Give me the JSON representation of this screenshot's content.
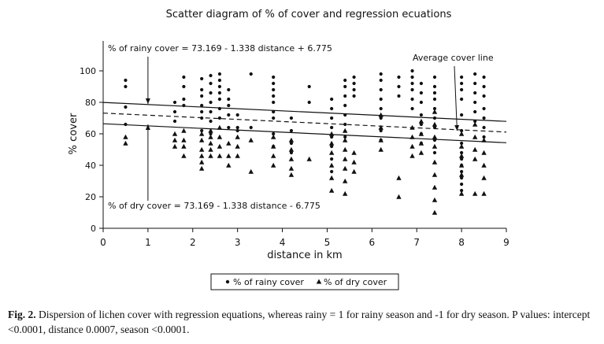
{
  "chart_data": {
    "type": "scatter",
    "title": "Scatter diagram of % of cover and regression ecuations",
    "xlabel": "distance in km",
    "ylabel": "% cover",
    "xlim": [
      0,
      9
    ],
    "ylim": [
      0,
      100
    ],
    "x_ticks": [
      "0",
      "1",
      "2",
      "3",
      "4",
      "5",
      "6",
      "7",
      "8",
      "9"
    ],
    "y_ticks": [
      "0",
      "20",
      "40",
      "60",
      "80",
      "100"
    ],
    "grid": false,
    "legend_position": "bottom-center",
    "series": [
      {
        "name": "% of rainy cover",
        "marker": "circle",
        "points": [
          [
            0.5,
            94
          ],
          [
            0.5,
            90
          ],
          [
            0.5,
            77
          ],
          [
            0.5,
            66
          ],
          [
            1.6,
            80
          ],
          [
            1.6,
            74
          ],
          [
            1.6,
            68
          ],
          [
            1.8,
            96
          ],
          [
            1.8,
            90
          ],
          [
            1.8,
            82
          ],
          [
            1.8,
            78
          ],
          [
            2.2,
            95
          ],
          [
            2.2,
            88
          ],
          [
            2.2,
            84
          ],
          [
            2.2,
            78
          ],
          [
            2.2,
            74
          ],
          [
            2.2,
            70
          ],
          [
            2.2,
            62
          ],
          [
            2.4,
            97
          ],
          [
            2.4,
            92
          ],
          [
            2.4,
            86
          ],
          [
            2.4,
            80
          ],
          [
            2.4,
            74
          ],
          [
            2.4,
            68
          ],
          [
            2.4,
            60
          ],
          [
            2.6,
            98
          ],
          [
            2.6,
            94
          ],
          [
            2.6,
            90
          ],
          [
            2.6,
            86
          ],
          [
            2.6,
            82
          ],
          [
            2.6,
            76
          ],
          [
            2.6,
            70
          ],
          [
            2.8,
            88
          ],
          [
            2.8,
            82
          ],
          [
            2.8,
            78
          ],
          [
            2.8,
            72
          ],
          [
            2.8,
            64
          ],
          [
            3.0,
            72
          ],
          [
            3.0,
            64
          ],
          [
            3.0,
            62
          ],
          [
            3.3,
            98
          ],
          [
            3.3,
            64
          ],
          [
            3.8,
            96
          ],
          [
            3.8,
            92
          ],
          [
            3.8,
            88
          ],
          [
            3.8,
            84
          ],
          [
            3.8,
            80
          ],
          [
            3.8,
            74
          ],
          [
            3.8,
            70
          ],
          [
            3.8,
            60
          ],
          [
            3.8,
            52
          ],
          [
            4.2,
            70
          ],
          [
            4.2,
            62
          ],
          [
            4.2,
            54
          ],
          [
            4.2,
            48
          ],
          [
            4.6,
            90
          ],
          [
            4.6,
            80
          ],
          [
            5.1,
            82
          ],
          [
            5.1,
            76
          ],
          [
            5.1,
            70
          ],
          [
            5.1,
            64
          ],
          [
            5.1,
            58
          ],
          [
            5.1,
            52
          ],
          [
            5.1,
            44
          ],
          [
            5.1,
            36
          ],
          [
            5.4,
            94
          ],
          [
            5.4,
            90
          ],
          [
            5.4,
            84
          ],
          [
            5.4,
            78
          ],
          [
            5.4,
            72
          ],
          [
            5.4,
            66
          ],
          [
            5.4,
            58
          ],
          [
            5.6,
            96
          ],
          [
            5.6,
            92
          ],
          [
            5.6,
            88
          ],
          [
            5.6,
            84
          ],
          [
            6.2,
            98
          ],
          [
            6.2,
            94
          ],
          [
            6.2,
            88
          ],
          [
            6.2,
            82
          ],
          [
            6.2,
            76
          ],
          [
            6.2,
            70
          ],
          [
            6.2,
            62
          ],
          [
            6.2,
            56
          ],
          [
            6.6,
            96
          ],
          [
            6.6,
            90
          ],
          [
            6.6,
            84
          ],
          [
            6.9,
            100
          ],
          [
            6.9,
            96
          ],
          [
            6.9,
            92
          ],
          [
            6.9,
            88
          ],
          [
            6.9,
            82
          ],
          [
            6.9,
            76
          ],
          [
            7.1,
            92
          ],
          [
            7.1,
            86
          ],
          [
            7.1,
            80
          ],
          [
            7.1,
            72
          ],
          [
            7.1,
            66
          ],
          [
            7.1,
            60
          ],
          [
            7.1,
            54
          ],
          [
            7.4,
            96
          ],
          [
            7.4,
            90
          ],
          [
            7.4,
            86
          ],
          [
            7.4,
            82
          ],
          [
            7.4,
            76
          ],
          [
            7.4,
            70
          ],
          [
            7.4,
            64
          ],
          [
            7.4,
            56
          ],
          [
            7.4,
            48
          ],
          [
            8.0,
            96
          ],
          [
            8.0,
            92
          ],
          [
            8.0,
            88
          ],
          [
            8.0,
            82
          ],
          [
            8.0,
            72
          ],
          [
            8.0,
            62
          ],
          [
            8.0,
            54
          ],
          [
            8.0,
            48
          ],
          [
            8.0,
            44
          ],
          [
            8.0,
            40
          ],
          [
            8.0,
            36
          ],
          [
            8.0,
            32
          ],
          [
            8.0,
            28
          ],
          [
            8.0,
            24
          ],
          [
            8.3,
            98
          ],
          [
            8.3,
            92
          ],
          [
            8.3,
            86
          ],
          [
            8.3,
            80
          ],
          [
            8.3,
            74
          ],
          [
            8.3,
            68
          ],
          [
            8.5,
            96
          ],
          [
            8.5,
            90
          ],
          [
            8.5,
            84
          ],
          [
            8.5,
            76
          ],
          [
            8.5,
            70
          ],
          [
            8.5,
            64
          ],
          [
            8.5,
            58
          ]
        ]
      },
      {
        "name": "% of dry cover",
        "marker": "triangle",
        "points": [
          [
            0.5,
            58
          ],
          [
            0.5,
            54
          ],
          [
            1.6,
            60
          ],
          [
            1.6,
            56
          ],
          [
            1.6,
            52
          ],
          [
            1.8,
            62
          ],
          [
            1.8,
            56
          ],
          [
            1.8,
            52
          ],
          [
            1.8,
            46
          ],
          [
            2.2,
            60
          ],
          [
            2.2,
            56
          ],
          [
            2.2,
            50
          ],
          [
            2.2,
            46
          ],
          [
            2.2,
            42
          ],
          [
            2.2,
            38
          ],
          [
            2.4,
            62
          ],
          [
            2.4,
            58
          ],
          [
            2.4,
            54
          ],
          [
            2.4,
            50
          ],
          [
            2.4,
            46
          ],
          [
            2.6,
            64
          ],
          [
            2.6,
            58
          ],
          [
            2.6,
            52
          ],
          [
            2.6,
            46
          ],
          [
            2.8,
            54
          ],
          [
            2.8,
            46
          ],
          [
            2.8,
            40
          ],
          [
            3.0,
            58
          ],
          [
            3.0,
            52
          ],
          [
            3.0,
            46
          ],
          [
            3.3,
            56
          ],
          [
            3.3,
            36
          ],
          [
            3.8,
            58
          ],
          [
            3.8,
            52
          ],
          [
            3.8,
            46
          ],
          [
            3.8,
            40
          ],
          [
            4.2,
            56
          ],
          [
            4.2,
            50
          ],
          [
            4.2,
            44
          ],
          [
            4.2,
            38
          ],
          [
            4.2,
            34
          ],
          [
            4.6,
            44
          ],
          [
            5.1,
            60
          ],
          [
            5.1,
            54
          ],
          [
            5.1,
            48
          ],
          [
            5.1,
            40
          ],
          [
            5.1,
            32
          ],
          [
            5.1,
            24
          ],
          [
            5.4,
            62
          ],
          [
            5.4,
            56
          ],
          [
            5.4,
            50
          ],
          [
            5.4,
            44
          ],
          [
            5.4,
            38
          ],
          [
            5.4,
            30
          ],
          [
            5.4,
            22
          ],
          [
            5.6,
            48
          ],
          [
            5.6,
            42
          ],
          [
            5.6,
            36
          ],
          [
            6.2,
            72
          ],
          [
            6.2,
            64
          ],
          [
            6.2,
            56
          ],
          [
            6.2,
            50
          ],
          [
            6.6,
            32
          ],
          [
            6.6,
            20
          ],
          [
            6.9,
            64
          ],
          [
            6.9,
            58
          ],
          [
            6.9,
            52
          ],
          [
            6.9,
            46
          ],
          [
            7.1,
            68
          ],
          [
            7.1,
            60
          ],
          [
            7.1,
            54
          ],
          [
            7.1,
            48
          ],
          [
            7.4,
            74
          ],
          [
            7.4,
            66
          ],
          [
            7.4,
            58
          ],
          [
            7.4,
            52
          ],
          [
            7.4,
            42
          ],
          [
            7.4,
            34
          ],
          [
            7.4,
            26
          ],
          [
            7.4,
            18
          ],
          [
            7.4,
            10
          ],
          [
            8.0,
            60
          ],
          [
            8.0,
            52
          ],
          [
            8.0,
            46
          ],
          [
            8.0,
            40
          ],
          [
            8.0,
            34
          ],
          [
            8.0,
            22
          ],
          [
            8.3,
            66
          ],
          [
            8.3,
            58
          ],
          [
            8.3,
            50
          ],
          [
            8.3,
            44
          ],
          [
            8.3,
            22
          ],
          [
            8.5,
            56
          ],
          [
            8.5,
            48
          ],
          [
            8.5,
            40
          ],
          [
            8.5,
            32
          ],
          [
            8.5,
            22
          ]
        ]
      }
    ],
    "lines": [
      {
        "style": "solid",
        "x": [
          0,
          9
        ],
        "y": [
          79.944,
          67.902
        ]
      },
      {
        "style": "dashed",
        "x": [
          0,
          9
        ],
        "y": [
          73.169,
          61.127
        ]
      },
      {
        "style": "solid",
        "x": [
          0,
          9
        ],
        "y": [
          66.394,
          54.352
        ]
      }
    ],
    "annotations": [
      {
        "text": "% of rainy cover = 73.169 - 1.338 distance + 6.775",
        "arrow_to": [
          1,
          79
        ]
      },
      {
        "text": "% of dry cover = 73.169 - 1.338 distance - 6.775",
        "arrow_to": [
          1,
          66
        ]
      },
      {
        "text": "Average cover line",
        "arrow_to": [
          7.9,
          62
        ]
      }
    ]
  },
  "caption": {
    "label": "Fig. 2.",
    "text": " Dispersion of lichen cover with regression equations, whereas rainy = 1 for rainy season and -1 for dry season. P values: intercept <0.0001, distance 0.0007, season <0.0001."
  }
}
